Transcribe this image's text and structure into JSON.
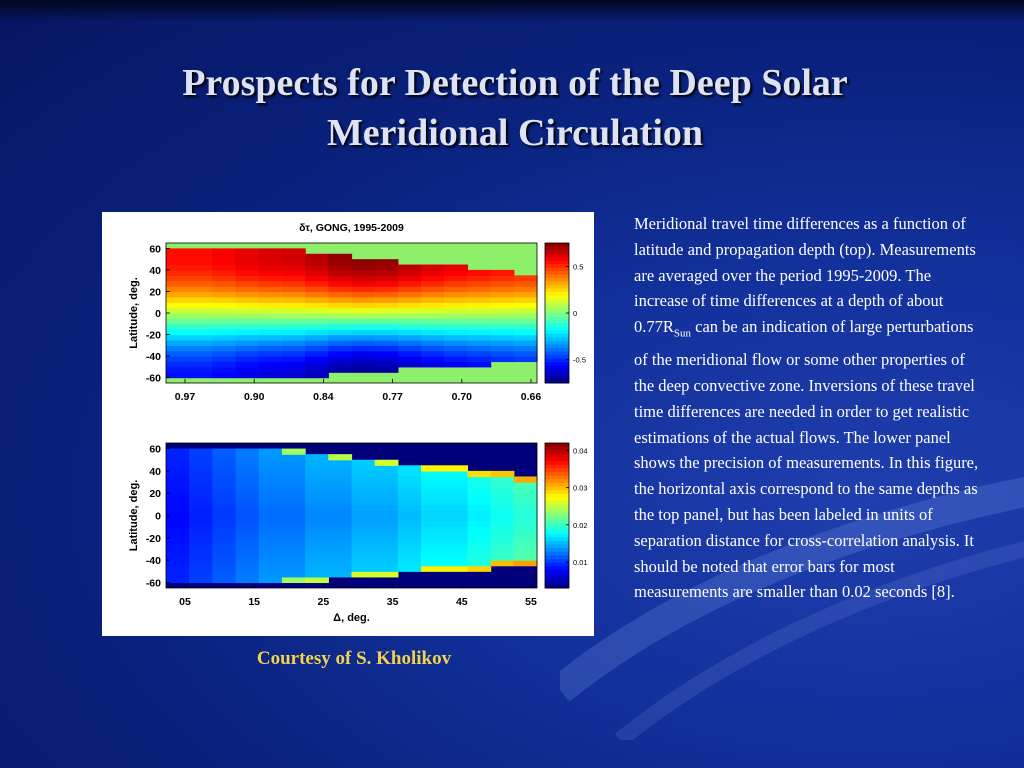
{
  "slide": {
    "title_line1": "Prospects for Detection of the Deep Solar",
    "title_line2": "Meridional Circulation",
    "credit": "Courtesy of S. Kholikov",
    "desc_part1": "Meridional travel time differences as a function of latitude and propagation depth (top). Measurements are averaged over  the period 1995-2009. The increase of time differences at a depth of about 0.77R",
    "desc_sub": "Sun",
    "desc_part2": " can be an indication of large perturbations of the meridional flow or some other properties of the deep convective zone. Inversions of these travel time differences are needed in order to get realistic estimations of the actual flows. The lower panel shows the precision of measurements. In this figure, the horizontal axis correspond to the same depths as the top panel, but has been labeled in units of separation distance for cross-correlation analysis. It should be noted that error bars for most measurements are smaller than 0.02 seconds [8]."
  },
  "colors": {
    "title": "#dde3f4",
    "credit": "#f2d34a",
    "background": "#0a2380",
    "mask_green": "#8ef06a"
  },
  "chart_data": [
    {
      "type": "heatmap",
      "title": "δτ,   GONG, 1995-2009",
      "ylabel": "Latitude,  deg.",
      "xlabel": "",
      "x_ticks": [
        "0.97",
        "0.90",
        "0.84",
        "0.77",
        "0.70",
        "0.66"
      ],
      "y_ticks": [
        "60",
        "40",
        "20",
        "0",
        "-20",
        "-40",
        "-60"
      ],
      "ylim": [
        -65,
        65
      ],
      "colorbar": {
        "ticks": [
          "0.5",
          "0",
          "-0.5"
        ],
        "range": [
          -0.75,
          0.75
        ]
      },
      "columns": 16,
      "column_lat_max": [
        62,
        62,
        62,
        62,
        62,
        60,
        57,
        55,
        52,
        50,
        47,
        45,
        43,
        40,
        38,
        35
      ],
      "column_lat_min": [
        -62,
        -62,
        -62,
        -62,
        -62,
        -60,
        -58,
        -57,
        -55,
        -54,
        -52,
        -51,
        -49,
        -48,
        -46,
        -45
      ],
      "column_peak": [
        0.55,
        0.55,
        0.57,
        0.6,
        0.62,
        0.63,
        0.67,
        0.72,
        0.74,
        0.73,
        0.69,
        0.65,
        0.62,
        0.6,
        0.58,
        0.56
      ],
      "description": "Travel time difference by latitude and propagation depth; positive (red) in the north, negative (blue) in the south"
    },
    {
      "type": "heatmap",
      "title": "",
      "ylabel": "Latitude,  deg.",
      "xlabel": "Δ,  deg.",
      "x_ticks": [
        "05",
        "15",
        "25",
        "35",
        "45",
        "55"
      ],
      "y_ticks": [
        "60",
        "40",
        "20",
        "0",
        "-20",
        "-40",
        "-60"
      ],
      "ylim": [
        -65,
        65
      ],
      "colorbar": {
        "ticks": [
          "0.04",
          "0.03",
          "0.02",
          "0.01"
        ],
        "range": [
          0.003,
          0.042
        ]
      },
      "columns": 16,
      "column_lat_max": [
        62,
        62,
        62,
        62,
        62,
        60,
        57,
        55,
        52,
        50,
        47,
        45,
        43,
        40,
        38,
        35
      ],
      "column_lat_min": [
        -62,
        -62,
        -62,
        -62,
        -62,
        -60,
        -58,
        -57,
        -55,
        -54,
        -52,
        -51,
        -49,
        -48,
        -46,
        -45
      ],
      "column_error": [
        0.008,
        0.009,
        0.01,
        0.011,
        0.012,
        0.012,
        0.013,
        0.013,
        0.014,
        0.014,
        0.015,
        0.016,
        0.016,
        0.017,
        0.018,
        0.019
      ]
    }
  ]
}
